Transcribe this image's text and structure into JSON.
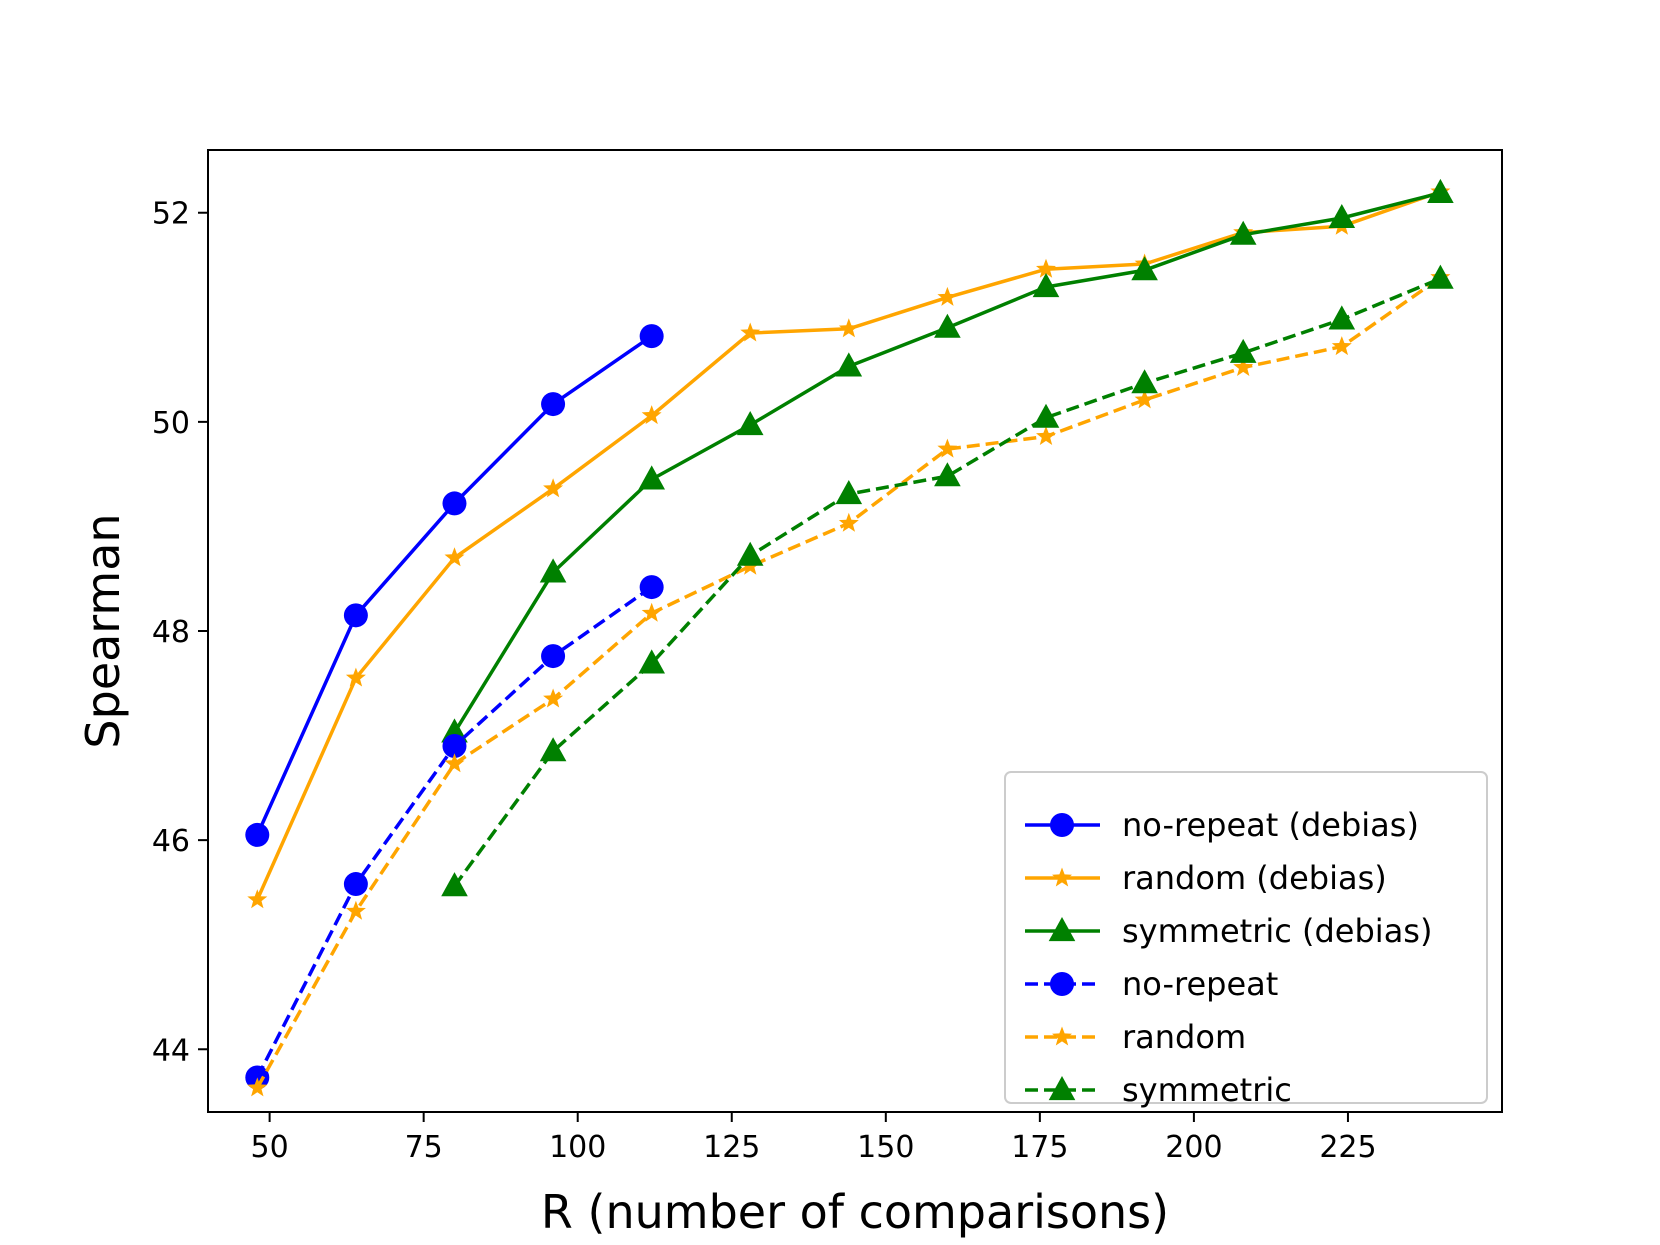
{
  "chart_data": {
    "type": "line",
    "title": "",
    "xlabel": "R (number of comparisons)",
    "ylabel": "Spearman",
    "xlim": [
      40,
      250
    ],
    "ylim": [
      43.4,
      52.6
    ],
    "xticks": [
      50,
      75,
      100,
      125,
      150,
      175,
      200,
      225
    ],
    "yticks": [
      44,
      46,
      48,
      50,
      52
    ],
    "grid": false,
    "legend_position": "lower-right",
    "series": [
      {
        "name": "no-repeat (debias)",
        "color": "#0000ff",
        "dash": "solid",
        "marker": "circle",
        "x": [
          48,
          64,
          80,
          96,
          112
        ],
        "y": [
          46.05,
          48.15,
          49.22,
          50.17,
          50.82
        ]
      },
      {
        "name": "random (debias)",
        "color": "#ffa500",
        "dash": "solid",
        "marker": "star",
        "x": [
          48,
          64,
          80,
          96,
          112,
          128,
          144,
          160,
          176,
          192,
          208,
          224,
          240
        ],
        "y": [
          45.43,
          47.55,
          48.7,
          49.36,
          50.06,
          50.85,
          50.89,
          51.19,
          51.46,
          51.51,
          51.81,
          51.87,
          52.2
        ]
      },
      {
        "name": "symmetric (debias)",
        "color": "#008000",
        "dash": "solid",
        "marker": "triangle",
        "x": [
          80,
          96,
          112,
          128,
          144,
          160,
          176,
          192,
          208,
          224,
          240
        ],
        "y": [
          47.03,
          48.56,
          49.45,
          49.97,
          50.53,
          50.9,
          51.29,
          51.45,
          51.79,
          51.95,
          52.19
        ]
      },
      {
        "name": "no-repeat",
        "color": "#0000ff",
        "dash": "dashed",
        "marker": "circle",
        "x": [
          48,
          64,
          80,
          96,
          112
        ],
        "y": [
          43.73,
          45.58,
          46.9,
          47.76,
          48.42
        ]
      },
      {
        "name": "random",
        "color": "#ffa500",
        "dash": "dashed",
        "marker": "star",
        "x": [
          48,
          64,
          80,
          96,
          112,
          128,
          144,
          160,
          176,
          192,
          208,
          224,
          240
        ],
        "y": [
          43.63,
          45.32,
          46.73,
          47.35,
          48.17,
          48.62,
          49.03,
          49.74,
          49.86,
          50.21,
          50.52,
          50.72,
          51.38
        ]
      },
      {
        "name": "symmetric",
        "color": "#008000",
        "dash": "dashed",
        "marker": "triangle",
        "x": [
          80,
          96,
          112,
          128,
          144,
          160,
          176,
          192,
          208,
          224,
          240
        ],
        "y": [
          45.56,
          46.85,
          47.69,
          48.72,
          49.31,
          49.48,
          50.04,
          50.37,
          50.66,
          50.98,
          51.37
        ]
      }
    ]
  }
}
